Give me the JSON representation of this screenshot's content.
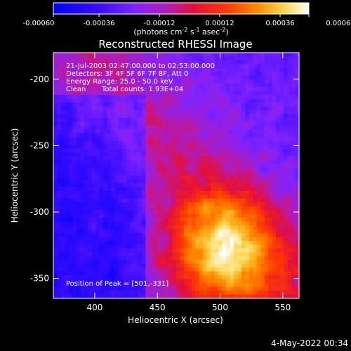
{
  "chart_data": {
    "type": "heatmap",
    "title": "Reconstructed RHESSI Image",
    "xlabel": "Heliocentric X (arcsec)",
    "ylabel": "Heliocentric Y (arcsec)",
    "xlim": [
      367,
      428
    ],
    "ylim": [
      -365,
      -180
    ],
    "xticks": [
      400,
      450,
      500,
      550
    ],
    "yticks": [
      -200,
      -250,
      -300,
      -350
    ],
    "colorbar": {
      "ticks": [
        "-0.00060",
        "-0.00036",
        "-0.00012",
        "0.00012",
        "0.00036",
        "0.00060"
      ],
      "unit_label": "(photons cm",
      "unit_sup1": "-2",
      "unit_mid": " s",
      "unit_sup2": "-1",
      "unit_mid2": " asec",
      "unit_sup3": "-2",
      "unit_end": ")",
      "range": [
        -0.0006,
        0.0006
      ]
    },
    "annotations": {
      "time_range": "21-Jul-2003 02:47:00.000 to 02:53:00.000",
      "detectors": "Detectors: 3F 4F 5F 6F 7F 8F, Att 0",
      "energy": "Energy Range: 25.0 - 50.0 keV",
      "clean": "Clean",
      "counts": "Total counts: 1.93E+04",
      "peak": "Position of Peak = [501,-331]"
    },
    "peak": {
      "x": 501,
      "y": -331
    },
    "footer_date": "4-May-2022 00:34"
  }
}
